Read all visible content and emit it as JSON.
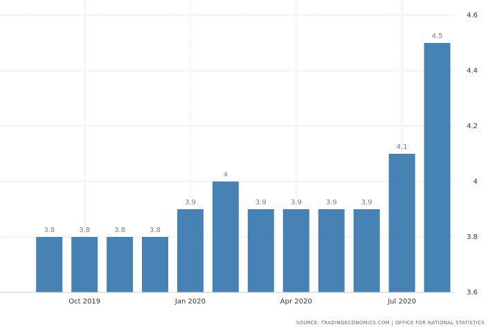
{
  "chart_data": {
    "type": "bar",
    "categories": [
      null,
      "Oct 2019",
      null,
      null,
      "Jan 2020",
      null,
      null,
      "Apr 2020",
      null,
      null,
      "Jul 2020",
      null
    ],
    "values": [
      3.8,
      3.8,
      3.8,
      3.8,
      3.9,
      4,
      3.9,
      3.9,
      3.9,
      3.9,
      4.1,
      4.5
    ],
    "color": "#4682b4",
    "ylim": [
      3.6,
      4.6
    ],
    "yticks": [
      3.6,
      3.8,
      4,
      4.2,
      4.4,
      4.6
    ],
    "grid": true,
    "source": "SOURCE: TRADINGECONOMICS.COM | OFFICE FOR NATIONAL STATISTICS"
  }
}
